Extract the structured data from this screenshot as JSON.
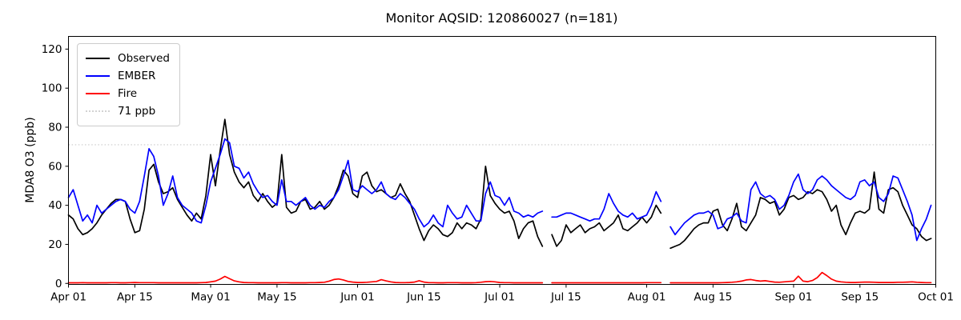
{
  "title": "Monitor AQSID: 120860027 (n=181)",
  "chart_data": {
    "type": "line",
    "title": "Monitor AQSID: 120860027 (n=181)",
    "xlabel": "",
    "ylabel": "MDA8 O3 (ppb)",
    "yticks": [
      0,
      20,
      40,
      60,
      80,
      100,
      120
    ],
    "ylim": [
      -0.5,
      126.5
    ],
    "grid": false,
    "x_tick_labels": [
      "Apr 01",
      "Apr 15",
      "May 01",
      "May 15",
      "Jun 01",
      "Jun 15",
      "Jul 01",
      "Jul 15",
      "Aug 01",
      "Aug 15",
      "Sep 01",
      "Sep 15",
      "Oct 01"
    ],
    "x_tick_days": [
      0,
      14,
      30,
      44,
      61,
      75,
      91,
      105,
      122,
      136,
      153,
      167,
      183
    ],
    "x_start_date": "Apr 01",
    "x_end_date": "Sep 30",
    "frequency": "daily",
    "threshold": {
      "value": 71,
      "label": "71 ppb",
      "color": "#d3d3d3",
      "style": "dotted"
    },
    "legend": {
      "position": "upper left",
      "entries": [
        "Observed",
        "EMBER",
        "Fire",
        "71 ppb"
      ]
    },
    "series": [
      {
        "name": "Observed",
        "color": "#000000",
        "values": [
          35,
          33,
          28,
          25,
          26,
          28,
          31,
          35,
          38,
          41,
          43,
          43,
          42,
          33,
          26,
          27,
          38,
          58,
          61,
          52,
          46,
          47,
          49,
          43,
          39,
          35,
          32,
          36,
          33,
          45,
          66,
          50,
          68,
          84,
          66,
          57,
          52,
          49,
          52,
          45,
          42,
          46,
          42,
          39,
          41,
          66,
          39,
          36,
          37,
          42,
          43,
          38,
          39,
          42,
          38,
          40,
          44,
          50,
          58,
          55,
          46,
          44,
          55,
          57,
          50,
          47,
          48,
          46,
          44,
          45,
          51,
          46,
          42,
          35,
          28,
          22,
          27,
          30,
          28,
          25,
          24,
          26,
          31,
          28,
          31,
          30,
          28,
          33,
          60,
          45,
          41,
          38,
          36,
          37,
          32,
          23,
          28,
          31,
          32,
          24,
          19,
          null,
          25,
          19,
          22,
          30,
          26,
          28,
          30,
          26,
          28,
          29,
          31,
          27,
          29,
          31,
          35,
          28,
          27,
          29,
          31,
          34,
          31,
          34,
          40,
          36,
          null,
          18,
          19,
          20,
          22,
          25,
          28,
          30,
          31,
          31,
          37,
          38,
          30,
          27,
          33,
          41,
          29,
          27,
          31,
          35,
          44,
          43,
          41,
          42,
          35,
          38,
          44,
          45,
          43,
          44,
          47,
          46,
          48,
          47,
          43,
          37,
          40,
          30,
          25,
          31,
          36,
          37,
          36,
          38,
          57,
          38,
          36,
          48,
          49,
          47,
          40,
          35,
          30,
          28,
          24,
          22,
          23
        ]
      },
      {
        "name": "EMBER",
        "color": "#0000ff",
        "values": [
          44,
          48,
          40,
          32,
          35,
          31,
          40,
          36,
          38,
          40,
          42,
          43,
          42,
          38,
          36,
          42,
          55,
          69,
          65,
          55,
          40,
          46,
          55,
          44,
          40,
          38,
          36,
          32,
          31,
          40,
          52,
          59,
          66,
          74,
          72,
          60,
          59,
          54,
          57,
          51,
          47,
          44,
          45,
          42,
          40,
          53,
          42,
          42,
          40,
          42,
          44,
          40,
          38,
          40,
          39,
          42,
          44,
          48,
          55,
          63,
          48,
          47,
          50,
          48,
          46,
          48,
          52,
          46,
          44,
          43,
          46,
          44,
          41,
          38,
          33,
          29,
          31,
          35,
          31,
          29,
          40,
          36,
          33,
          34,
          40,
          36,
          32,
          32,
          46,
          52,
          45,
          44,
          40,
          44,
          37,
          36,
          34,
          35,
          34,
          36,
          37,
          null,
          34,
          34,
          35,
          36,
          36,
          35,
          34,
          33,
          32,
          33,
          33,
          38,
          46,
          41,
          37,
          35,
          34,
          36,
          33,
          34,
          35,
          40,
          47,
          42,
          null,
          29,
          25,
          28,
          31,
          33,
          35,
          36,
          36,
          37,
          35,
          28,
          29,
          33,
          34,
          36,
          32,
          31,
          48,
          52,
          46,
          44,
          45,
          43,
          38,
          40,
          45,
          52,
          56,
          48,
          46,
          48,
          53,
          55,
          53,
          50,
          48,
          46,
          44,
          43,
          45,
          52,
          53,
          50,
          52,
          44,
          42,
          46,
          55,
          54,
          48,
          42,
          35,
          22,
          28,
          33,
          40
        ]
      },
      {
        "name": "Fire",
        "color": "#ff0000",
        "values": [
          0.3,
          0.3,
          0.3,
          0.4,
          0.3,
          0.3,
          0.3,
          0.3,
          0.3,
          0.4,
          0.4,
          0.3,
          0.3,
          0.4,
          0.5,
          0.4,
          0.4,
          0.4,
          0.4,
          0.3,
          0.3,
          0.3,
          0.3,
          0.3,
          0.3,
          0.3,
          0.3,
          0.3,
          0.4,
          0.5,
          0.8,
          1.2,
          2.2,
          3.6,
          2.4,
          1.3,
          0.8,
          0.5,
          0.4,
          0.4,
          0.3,
          0.3,
          0.3,
          0.3,
          0.3,
          0.4,
          0.4,
          0.3,
          0.3,
          0.3,
          0.3,
          0.4,
          0.4,
          0.5,
          0.6,
          1.2,
          2.0,
          2.3,
          1.8,
          1.0,
          0.7,
          0.5,
          0.5,
          0.6,
          0.8,
          1.0,
          1.9,
          1.3,
          0.8,
          0.5,
          0.4,
          0.4,
          0.5,
          0.7,
          1.4,
          0.7,
          0.4,
          0.4,
          0.3,
          0.3,
          0.4,
          0.4,
          0.4,
          0.3,
          0.3,
          0.3,
          0.4,
          0.6,
          0.9,
          1.0,
          0.8,
          0.5,
          0.4,
          0.4,
          0.3,
          0.3,
          0.3,
          0.3,
          0.3,
          0.3,
          0.3,
          null,
          0.3,
          0.3,
          0.3,
          0.3,
          0.3,
          0.3,
          0.3,
          0.3,
          0.3,
          0.3,
          0.3,
          0.3,
          0.3,
          0.3,
          0.3,
          0.3,
          0.3,
          0.3,
          0.3,
          0.3,
          0.4,
          0.4,
          0.4,
          0.4,
          null,
          0.3,
          0.3,
          0.3,
          0.3,
          0.3,
          0.3,
          0.3,
          0.3,
          0.3,
          0.3,
          0.3,
          0.4,
          0.5,
          0.6,
          0.8,
          1.2,
          1.8,
          2.0,
          1.5,
          1.2,
          1.4,
          1.0,
          0.7,
          0.6,
          0.8,
          1.0,
          1.2,
          3.7,
          1.2,
          0.9,
          1.5,
          3.0,
          5.6,
          4.0,
          2.2,
          1.2,
          0.8,
          0.6,
          0.5,
          0.5,
          0.6,
          0.7,
          0.7,
          0.6,
          0.5,
          0.5,
          0.5,
          0.5,
          0.6,
          0.6,
          0.7,
          0.8,
          0.6,
          0.5,
          0.4,
          0.4
        ]
      }
    ]
  }
}
